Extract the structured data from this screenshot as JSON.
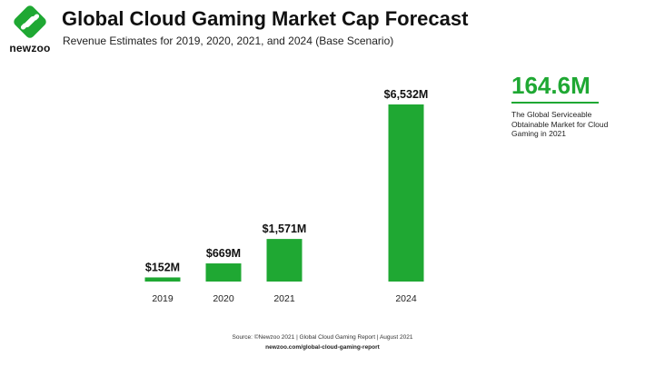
{
  "brand": {
    "name": "newzoo",
    "accent": "#1fa833"
  },
  "highlight": {
    "value": "164.6M",
    "description": "The Global Serviceable Obtainable Market for Cloud Gaming in 2021"
  },
  "footer": {
    "source": "Source: ©Newzoo 2021 | Global Cloud Gaming Report | August 2021",
    "url": "newzoo.com/global-cloud-gaming-report"
  },
  "chart_data": {
    "type": "bar",
    "title": "Global Cloud Gaming Market Cap Forecast",
    "subtitle": "Revenue Estimates for 2019, 2020, 2021, and 2024 (Base Scenario)",
    "categories": [
      "2019",
      "2020",
      "2021",
      "2024"
    ],
    "values": [
      152,
      669,
      1571,
      6532
    ],
    "data_labels": [
      "$152M",
      "$669M",
      "$1,571M",
      "$6,532M"
    ],
    "unit": "M USD",
    "xlabel": "",
    "ylabel": "",
    "ylim": [
      0,
      6532
    ],
    "grid": false,
    "legend": "none",
    "bar_color": "#1fa833"
  }
}
